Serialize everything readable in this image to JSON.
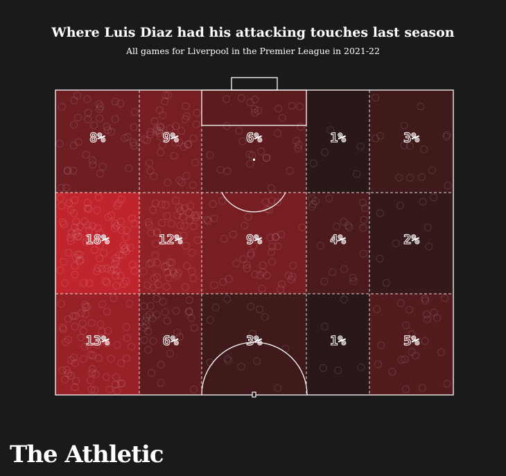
{
  "header": {
    "title": "Where Luis Diaz had his attacking touches last season",
    "subtitle": "All games for Liverpool in the Premier League in 2021-22"
  },
  "brand": {
    "name": "The Athletic"
  },
  "colors": {
    "background": "#1a1a1a",
    "heat_low": "#1c1616",
    "heat_high": "#c0252d",
    "lines": "#ffffff"
  },
  "chart_data": {
    "type": "heatmap",
    "title": "Where Luis Diaz had his attacking touches last season",
    "subtitle": "All games for Liverpool in the Premier League in 2021-22",
    "unit": "%",
    "rows": 3,
    "cols": 5,
    "cells": [
      [
        8,
        9,
        6,
        1,
        3
      ],
      [
        18,
        12,
        9,
        4,
        2
      ],
      [
        13,
        6,
        3,
        1,
        5
      ]
    ],
    "labels": [
      [
        "8%",
        "9%",
        "6%",
        "1%",
        "3%"
      ],
      [
        "18%",
        "12%",
        "9%",
        "4%",
        "2%"
      ],
      [
        "13%",
        "6%",
        "3%",
        "1%",
        "5%"
      ]
    ],
    "grid": true,
    "legend": "none"
  }
}
